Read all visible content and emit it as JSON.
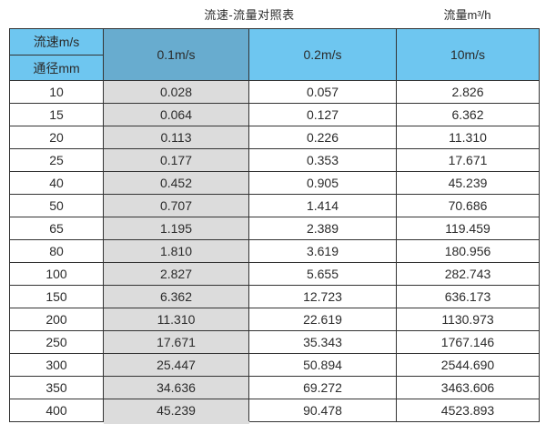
{
  "page": {
    "title": "流速-流量对照表",
    "unit_label": "流量m³/h"
  },
  "table": {
    "corner": {
      "top": "流速m/s",
      "bottom": "通径mm"
    },
    "velocity_headers": [
      "0.1m/s",
      "0.2m/s",
      "10m/s"
    ],
    "rows": [
      {
        "dn": "10",
        "values": [
          "0.028",
          "0.057",
          "2.826"
        ]
      },
      {
        "dn": "15",
        "values": [
          "0.064",
          "0.127",
          "6.362"
        ]
      },
      {
        "dn": "20",
        "values": [
          "0.113",
          "0.226",
          "11.310"
        ]
      },
      {
        "dn": "25",
        "values": [
          "0.177",
          "0.353",
          "17.671"
        ]
      },
      {
        "dn": "40",
        "values": [
          "0.452",
          "0.905",
          "45.239"
        ]
      },
      {
        "dn": "50",
        "values": [
          "0.707",
          "1.414",
          "70.686"
        ]
      },
      {
        "dn": "65",
        "values": [
          "1.195",
          "2.389",
          "119.459"
        ]
      },
      {
        "dn": "80",
        "values": [
          "1.810",
          "3.619",
          "180.956"
        ]
      },
      {
        "dn": "100",
        "values": [
          "2.827",
          "5.655",
          "282.743"
        ]
      },
      {
        "dn": "150",
        "values": [
          "6.362",
          "12.723",
          "636.173"
        ]
      },
      {
        "dn": "200",
        "values": [
          "11.310",
          "22.619",
          "1130.973"
        ]
      },
      {
        "dn": "250",
        "values": [
          "17.671",
          "35.343",
          "1767.146"
        ]
      },
      {
        "dn": "300",
        "values": [
          "25.447",
          "50.894",
          "2544.690"
        ]
      },
      {
        "dn": "350",
        "values": [
          "34.636",
          "69.272",
          "3463.606"
        ]
      },
      {
        "dn": "400",
        "values": [
          "45.239",
          "90.478",
          "4523.893"
        ]
      }
    ]
  },
  "colors": {
    "header_light_blue": "#6ec6f0",
    "header_dark_blue": "#68accf",
    "col_gray": "#dcdcdc",
    "border": "#333333"
  }
}
